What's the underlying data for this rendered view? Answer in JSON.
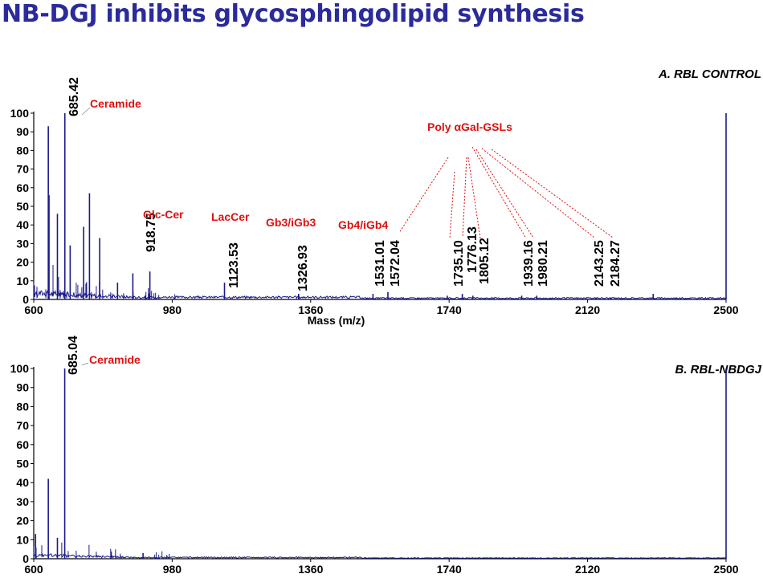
{
  "title": "NB-DGJ inhibits glycosphingolipid synthesis",
  "colors": {
    "title": "#2b2b9c",
    "trace": "#1a1a8a",
    "annotation": "#e01010",
    "axis": "#000000"
  },
  "chart_data": [
    {
      "type": "line",
      "title": "A. RBL CONTROL",
      "xlabel": "Mass (m/z)",
      "ylabel": "",
      "xlim": [
        600,
        2500
      ],
      "ylim": [
        0,
        100
      ],
      "x_ticks": [
        "600",
        "980",
        "1360",
        "1740",
        "2120",
        "2500"
      ],
      "y_ticks": [
        "0",
        "10",
        "20",
        "30",
        "40",
        "50",
        "60",
        "70",
        "80",
        "90",
        "100"
      ],
      "major_peaks": [
        {
          "mz": 640,
          "intensity": 93
        },
        {
          "mz": 642,
          "intensity": 56
        },
        {
          "mz": 665,
          "intensity": 46
        },
        {
          "mz": 685.42,
          "intensity": 100
        },
        {
          "mz": 700,
          "intensity": 29
        },
        {
          "mz": 737,
          "intensity": 39
        },
        {
          "mz": 753,
          "intensity": 57
        },
        {
          "mz": 781,
          "intensity": 33
        },
        {
          "mz": 830,
          "intensity": 9
        },
        {
          "mz": 872,
          "intensity": 14
        },
        {
          "mz": 918.75,
          "intensity": 15
        },
        {
          "mz": 1123.53,
          "intensity": 9
        },
        {
          "mz": 1326.93,
          "intensity": 3
        },
        {
          "mz": 1531.01,
          "intensity": 3
        },
        {
          "mz": 1572.04,
          "intensity": 4
        },
        {
          "mz": 1735.1,
          "intensity": 2
        },
        {
          "mz": 1776.13,
          "intensity": 3
        },
        {
          "mz": 1805.12,
          "intensity": 2
        },
        {
          "mz": 1939.16,
          "intensity": 2
        },
        {
          "mz": 1980.21,
          "intensity": 2
        },
        {
          "mz": 2143.25,
          "intensity": 1
        },
        {
          "mz": 2184.27,
          "intensity": 1
        },
        {
          "mz": 2300,
          "intensity": 3
        },
        {
          "mz": 2500,
          "intensity": 100
        }
      ],
      "peak_labels": [
        "685.42",
        "918.75",
        "1123.53",
        "1326.93",
        "1531.01",
        "1572.04",
        "1735.10",
        "1776.13",
        "1805.12",
        "1939.16",
        "1980.21",
        "2143.25",
        "2184.27"
      ],
      "annotations": [
        "Ceramide",
        "Glc-Cer",
        "LacCer",
        "Gb3/iGb3",
        "Gb4/iGb4",
        "Poly αGal-GSLs"
      ]
    },
    {
      "type": "line",
      "title": "B. RBL-NBDGJ",
      "xlabel": "",
      "ylabel": "",
      "xlim": [
        600,
        2500
      ],
      "ylim": [
        0,
        100
      ],
      "x_ticks": [
        "600",
        "980",
        "1360",
        "1740",
        "2120",
        "2500"
      ],
      "y_ticks": [
        "0",
        "10",
        "20",
        "30",
        "40",
        "50",
        "60",
        "70",
        "80",
        "90",
        "100"
      ],
      "major_peaks": [
        {
          "mz": 605,
          "intensity": 13
        },
        {
          "mz": 640,
          "intensity": 42
        },
        {
          "mz": 665,
          "intensity": 11
        },
        {
          "mz": 685.04,
          "intensity": 100
        },
        {
          "mz": 900,
          "intensity": 3
        },
        {
          "mz": 2500,
          "intensity": 100
        }
      ],
      "peak_labels": [
        "685.04"
      ],
      "annotations": [
        "Ceramide"
      ]
    }
  ]
}
